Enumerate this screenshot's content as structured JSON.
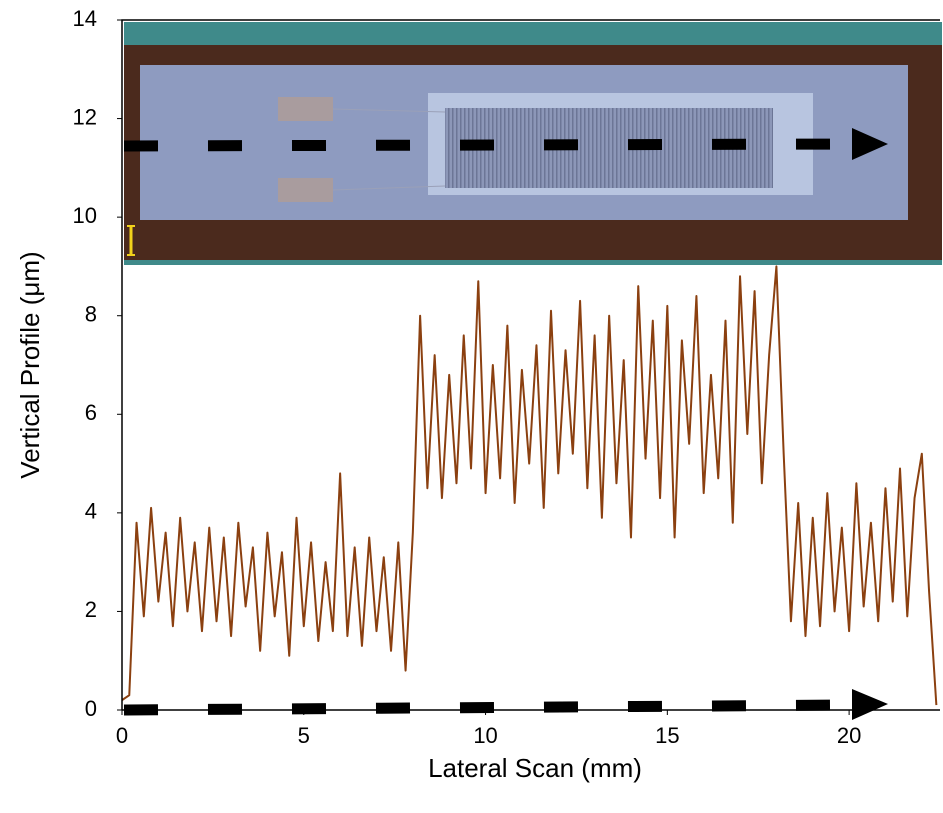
{
  "chart_data": {
    "type": "line",
    "x_label": "Lateral Scan (mm)",
    "y_label": "Vertical Profile (μm)",
    "color": "#8b4010",
    "xlim": [
      0,
      22.5
    ],
    "xticks": [
      0,
      5,
      10,
      15,
      20
    ],
    "ylim": [
      0,
      14
    ],
    "yticks": [
      0,
      2,
      4,
      6,
      8,
      10,
      12,
      14
    ],
    "x": [
      0,
      0.2,
      0.4,
      0.6,
      0.8,
      1,
      1.2,
      1.4,
      1.6,
      1.8,
      2,
      2.2,
      2.4,
      2.6,
      2.8,
      3,
      3.2,
      3.4,
      3.6,
      3.8,
      4,
      4.2,
      4.4,
      4.6,
      4.8,
      5,
      5.2,
      5.4,
      5.6,
      5.8,
      6,
      6.2,
      6.4,
      6.6,
      6.8,
      7,
      7.2,
      7.4,
      7.6,
      7.8,
      8,
      8.2,
      8.4,
      8.6,
      8.8,
      9,
      9.2,
      9.4,
      9.6,
      9.8,
      10,
      10.2,
      10.4,
      10.6,
      10.8,
      11,
      11.2,
      11.4,
      11.6,
      11.8,
      12,
      12.2,
      12.4,
      12.6,
      12.8,
      13,
      13.2,
      13.4,
      13.6,
      13.8,
      14,
      14.2,
      14.4,
      14.6,
      14.8,
      15,
      15.2,
      15.4,
      15.6,
      15.8,
      16,
      16.2,
      16.4,
      16.6,
      16.8,
      17,
      17.2,
      17.4,
      17.6,
      17.8,
      18,
      18.2,
      18.4,
      18.6,
      18.8,
      19,
      19.2,
      19.4,
      19.6,
      19.8,
      20,
      20.2,
      20.4,
      20.6,
      20.8,
      21,
      21.2,
      21.4,
      21.6,
      21.8,
      22,
      22.2,
      22.4
    ],
    "values": [
      0.2,
      0.3,
      3.8,
      1.9,
      4.1,
      2.2,
      3.6,
      1.7,
      3.9,
      2.0,
      3.4,
      1.6,
      3.7,
      1.8,
      3.5,
      1.5,
      3.8,
      2.1,
      3.3,
      1.2,
      3.6,
      1.9,
      3.2,
      1.1,
      3.9,
      1.7,
      3.4,
      1.4,
      3.0,
      1.6,
      4.8,
      1.5,
      3.3,
      1.3,
      3.5,
      1.6,
      3.1,
      1.2,
      3.4,
      0.8,
      3.6,
      8.0,
      4.5,
      7.2,
      4.3,
      6.8,
      4.6,
      7.6,
      4.9,
      8.7,
      4.4,
      7.0,
      4.7,
      7.8,
      4.2,
      6.9,
      5.0,
      7.4,
      4.1,
      8.1,
      4.8,
      7.3,
      5.2,
      8.3,
      4.5,
      7.6,
      3.9,
      8.0,
      4.6,
      7.1,
      3.5,
      8.6,
      5.1,
      7.9,
      4.3,
      8.2,
      3.5,
      7.5,
      5.4,
      8.4,
      4.4,
      6.8,
      4.7,
      7.9,
      3.8,
      8.8,
      5.6,
      8.5,
      4.6,
      7.2,
      9.0,
      5.2,
      1.8,
      4.2,
      1.5,
      3.9,
      1.7,
      4.4,
      2.0,
      3.7,
      1.6,
      4.6,
      2.1,
      3.8,
      1.8,
      4.5,
      2.2,
      4.9,
      1.9,
      4.3,
      5.2,
      2.4,
      0.1
    ]
  }
}
